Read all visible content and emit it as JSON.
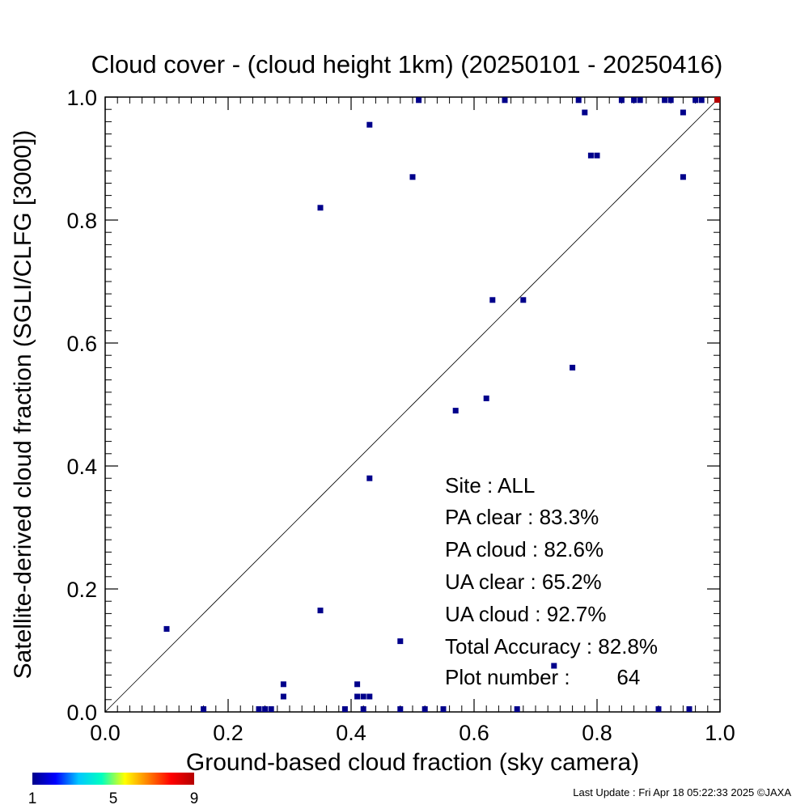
{
  "chart_data": {
    "type": "scatter",
    "title": "Cloud cover - (cloud height 1km)  (20250101 - 20250416)",
    "xlabel": "Ground-based cloud fraction (sky camera)",
    "ylabel": "Satellite-derived cloud fraction (SGLI/CLFG [3000])",
    "xlim": [
      0,
      1
    ],
    "ylim": [
      0,
      1
    ],
    "x_ticks": [
      "0.0",
      "0.2",
      "0.4",
      "0.6",
      "0.8",
      "1.0"
    ],
    "y_ticks": [
      "0.0",
      "0.2",
      "0.4",
      "0.6",
      "0.8",
      "1.0"
    ],
    "grid": false,
    "reference_line": "1:1 diagonal",
    "points": [
      {
        "x": 0.1,
        "y": 0.135,
        "count": 1
      },
      {
        "x": 0.16,
        "y": 0.0,
        "count": 1
      },
      {
        "x": 0.25,
        "y": 0.0,
        "count": 1
      },
      {
        "x": 0.26,
        "y": 0.0,
        "count": 1
      },
      {
        "x": 0.27,
        "y": 0.0,
        "count": 1
      },
      {
        "x": 0.29,
        "y": 0.045,
        "count": 1
      },
      {
        "x": 0.29,
        "y": 0.025,
        "count": 1
      },
      {
        "x": 0.35,
        "y": 0.82,
        "count": 1
      },
      {
        "x": 0.35,
        "y": 0.165,
        "count": 1
      },
      {
        "x": 0.39,
        "y": 0.0,
        "count": 1
      },
      {
        "x": 0.41,
        "y": 0.045,
        "count": 1
      },
      {
        "x": 0.41,
        "y": 0.025,
        "count": 1
      },
      {
        "x": 0.42,
        "y": 0.025,
        "count": 1
      },
      {
        "x": 0.42,
        "y": 0.0,
        "count": 1
      },
      {
        "x": 0.43,
        "y": 0.025,
        "count": 1
      },
      {
        "x": 0.43,
        "y": 0.955,
        "count": 1
      },
      {
        "x": 0.43,
        "y": 0.38,
        "count": 1
      },
      {
        "x": 0.48,
        "y": 0.115,
        "count": 1
      },
      {
        "x": 0.48,
        "y": 0.0,
        "count": 1
      },
      {
        "x": 0.5,
        "y": 0.87,
        "count": 1
      },
      {
        "x": 0.51,
        "y": 0.995,
        "count": 1
      },
      {
        "x": 0.52,
        "y": 0.0,
        "count": 1
      },
      {
        "x": 0.55,
        "y": 0.0,
        "count": 1
      },
      {
        "x": 0.57,
        "y": 0.49,
        "count": 1
      },
      {
        "x": 0.62,
        "y": 0.51,
        "count": 1
      },
      {
        "x": 0.63,
        "y": 0.67,
        "count": 1
      },
      {
        "x": 0.65,
        "y": 0.995,
        "count": 1
      },
      {
        "x": 0.67,
        "y": 0.0,
        "count": 1
      },
      {
        "x": 0.68,
        "y": 0.67,
        "count": 1
      },
      {
        "x": 0.73,
        "y": 0.075,
        "count": 1
      },
      {
        "x": 0.76,
        "y": 0.56,
        "count": 1
      },
      {
        "x": 0.77,
        "y": 0.995,
        "count": 1
      },
      {
        "x": 0.78,
        "y": 0.975,
        "count": 1
      },
      {
        "x": 0.79,
        "y": 0.905,
        "count": 1
      },
      {
        "x": 0.8,
        "y": 0.905,
        "count": 1
      },
      {
        "x": 0.84,
        "y": 0.995,
        "count": 1
      },
      {
        "x": 0.86,
        "y": 0.995,
        "count": 1
      },
      {
        "x": 0.87,
        "y": 0.995,
        "count": 1
      },
      {
        "x": 0.9,
        "y": 0.0,
        "count": 1
      },
      {
        "x": 0.91,
        "y": 0.995,
        "count": 1
      },
      {
        "x": 0.92,
        "y": 0.995,
        "count": 1
      },
      {
        "x": 0.94,
        "y": 0.975,
        "count": 1
      },
      {
        "x": 0.94,
        "y": 0.87,
        "count": 1
      },
      {
        "x": 0.95,
        "y": 0.0,
        "count": 1
      },
      {
        "x": 0.96,
        "y": 0.995,
        "count": 1
      },
      {
        "x": 0.97,
        "y": 0.995,
        "count": 1
      },
      {
        "x": 1.0,
        "y": 1.0,
        "count": 9
      }
    ],
    "colorbar": {
      "min": 1,
      "max": 9,
      "tick_labels": [
        "1",
        "5",
        "9"
      ],
      "colors": [
        "#00008b",
        "#0000ff",
        "#00c8ff",
        "#00ffc0",
        "#ffff00",
        "#ff8000",
        "#ff0000",
        "#b40000"
      ]
    }
  },
  "stats": {
    "site": "Site : ALL",
    "pa_clear": "PA clear :  83.3%",
    "pa_cloud": "PA cloud :  82.6%",
    "ua_clear": "UA clear :  65.2%",
    "ua_cloud": "UA cloud :  92.7%",
    "total_accuracy": "Total Accuracy :  82.8%",
    "plot_number": "Plot number :        64"
  },
  "footer": {
    "last_update": "Last Update : Fri Apr 18 05:22:33 2025  ©JAXA"
  }
}
